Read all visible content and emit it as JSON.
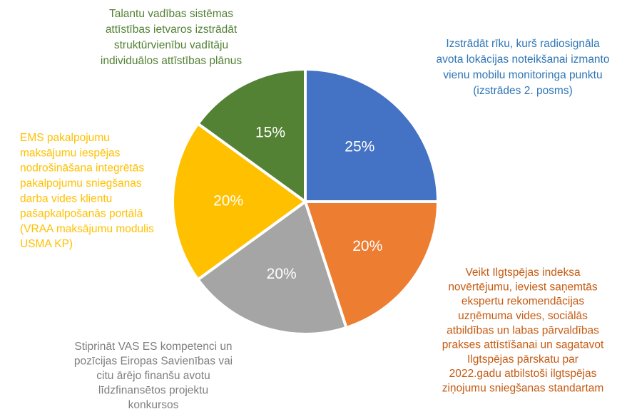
{
  "chart_data": {
    "type": "pie",
    "categories": [
      [
        "Izstrādāt rīku, kurš radiosignāla",
        "avota lokācijas noteikšanai izmanto",
        "vienu mobilu monitoringa punktu",
        "(izstrādes 2. posms)"
      ],
      [
        "Veikt Ilgtspējas indeksa",
        "novērtējumu, ieviest saņemtās",
        "ekspertu rekomendācijas",
        "uzņēmuma vides, sociālās",
        "atbildības un labas pārvaldības",
        "prakses attīstīšanai un sagatavot",
        "Ilgtspējas pārskatu par",
        "2022.gadu atbilstoši ilgtspējas",
        "ziņojumu sniegšanas standartam"
      ],
      [
        "Stiprināt VAS ES kompetenci un",
        "pozīcijas  Eiropas Savienības vai",
        "citu ārējo finanšu avotu",
        "līdzfinansētos projektu",
        "konkursos"
      ],
      [
        "EMS pakalpojumu",
        "maksājumu iespējas",
        "nodrošināšana integrētās",
        "pakalpojumu sniegšanas",
        "darba vides klientu",
        "pašapkalpošanās portālā",
        "(VRAA maksājumu modulis",
        "USMA KP)"
      ],
      [
        "Talantu vadības sistēmas",
        "attīstības ietvaros izstrādāt",
        "struktūrvienību vadītāju",
        "individuālos attīstības plānus"
      ]
    ],
    "values": [
      25,
      20,
      20,
      20,
      15
    ],
    "value_labels": [
      "25%",
      "20%",
      "20%",
      "20%",
      "15%"
    ],
    "colors": [
      "#4472c4",
      "#ed7d31",
      "#a5a5a5",
      "#ffc000",
      "#548235"
    ],
    "label_colors": [
      "#2e75b6",
      "#c55a11",
      "#7f7f7f",
      "#ffc000",
      "#538135"
    ]
  }
}
